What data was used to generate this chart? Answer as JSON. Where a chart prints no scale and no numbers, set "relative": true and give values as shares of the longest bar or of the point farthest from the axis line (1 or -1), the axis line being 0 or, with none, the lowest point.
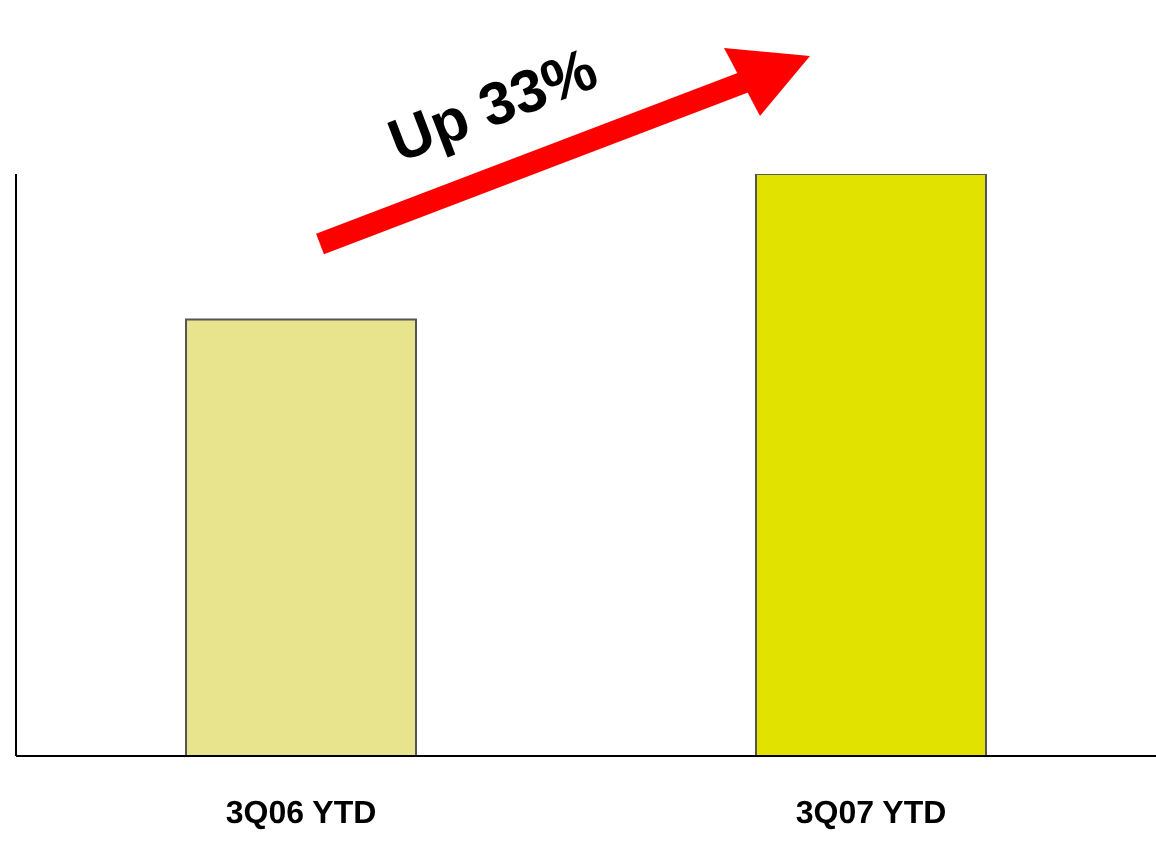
{
  "chart_data": {
    "type": "bar",
    "relative": true,
    "categories": [
      "3Q06 YTD",
      "3Q07 YTD"
    ],
    "values": [
      0.75,
      1
    ],
    "colors": [
      "#e8e48e",
      "#e2e200"
    ],
    "annotations": [
      "Up 33%"
    ]
  }
}
